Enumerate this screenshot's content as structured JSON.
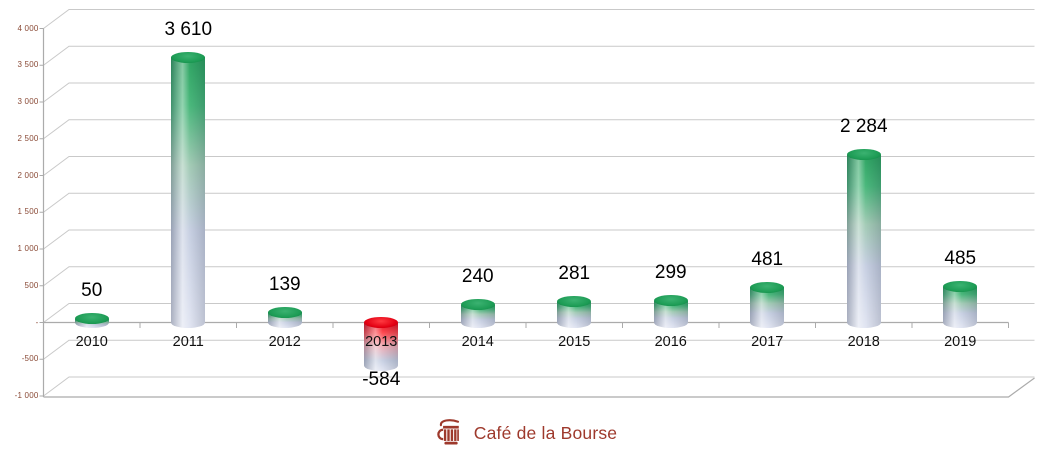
{
  "chart_data": {
    "type": "bar",
    "style": "3d-cylinder",
    "title": "",
    "xlabel": "",
    "ylabel": "",
    "categories": [
      "2010",
      "2011",
      "2012",
      "2013",
      "2014",
      "2015",
      "2016",
      "2017",
      "2018",
      "2019"
    ],
    "values": [
      50,
      3610,
      139,
      -584,
      240,
      281,
      299,
      481,
      2284,
      485
    ],
    "data_labels": [
      "50",
      "3 610",
      "139",
      "-584",
      "240",
      "281",
      "299",
      "481",
      "2 284",
      "485"
    ],
    "ylim": [
      -1000,
      4000
    ],
    "y_tick_step": 500,
    "y_tick_labels": [
      "4 000",
      "3 500",
      "3 000",
      "2 500",
      "2 000",
      "1 500",
      "1 000",
      "500",
      "-",
      "-500",
      "-1 000"
    ],
    "grid": true,
    "legend": "none",
    "colors": {
      "positive_bar_top": "#1d9c55",
      "positive_bar_top_light": "#3bb271",
      "positive_bar_rim": "#0f7a41",
      "negative_bar_top": "#e30013",
      "negative_bar_top_light": "#ff3a41",
      "negative_bar_rim": "#b30010",
      "bar_fade_mid": "#c3cce0",
      "bar_fade_bottom": "#dfe3f1",
      "gridline": "#c9c9c9",
      "axis_line": "#ababab",
      "y_tick_label_color": "#8a4a36",
      "category_label_color": "#111111",
      "value_label_color": "#000000"
    }
  },
  "footer": {
    "logo_text": "Café de la Bourse",
    "logo_color": "#9e392c",
    "logo_icon": "cafe-cup-icon"
  }
}
